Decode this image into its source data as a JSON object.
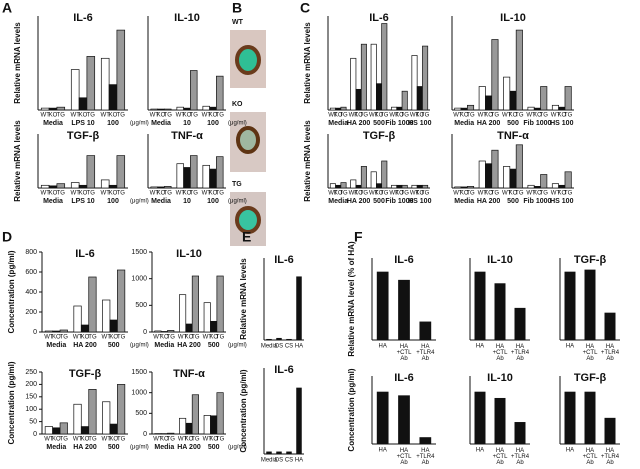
{
  "images": {
    "panel": "B",
    "labels": [
      "WT",
      "KO",
      "TG"
    ]
  },
  "chart_data": [
    {
      "type": "bar",
      "panel": "A",
      "title": "IL-6",
      "ylabel": "Relative mRNA levels",
      "categories": [
        "Media",
        "LPS 10",
        "100"
      ],
      "unit": "(μg/ml)",
      "ylim": [
        0,
        100
      ],
      "series": [
        {
          "name": "WT",
          "color": "#ffffff",
          "values": [
            2,
            43,
            55
          ]
        },
        {
          "name": "KO",
          "color": "#111111",
          "values": [
            2,
            13,
            27
          ]
        },
        {
          "name": "TG",
          "color": "#999999",
          "values": [
            3,
            57,
            85
          ]
        }
      ]
    },
    {
      "type": "bar",
      "title": "IL-10",
      "categories": [
        "Media",
        "10",
        "100"
      ],
      "unit": "(μg/ml)",
      "ylim": [
        0,
        100
      ],
      "series": [
        {
          "name": "WT",
          "color": "#ffffff",
          "values": [
            1,
            3,
            4
          ]
        },
        {
          "name": "KO",
          "color": "#111111",
          "values": [
            1,
            2,
            3
          ]
        },
        {
          "name": "TG",
          "color": "#999999",
          "values": [
            1,
            42,
            36
          ]
        }
      ]
    },
    {
      "type": "bar",
      "title": "TGF-β",
      "ylabel": "Relative mRNA levels",
      "categories": [
        "Media",
        "LPS 10",
        "100"
      ],
      "unit": "(μg/ml)",
      "ylim": [
        0,
        100
      ],
      "series": [
        {
          "name": "WT",
          "color": "#ffffff",
          "values": [
            5,
            10,
            15
          ]
        },
        {
          "name": "KO",
          "color": "#111111",
          "values": [
            4,
            5,
            5
          ]
        },
        {
          "name": "TG",
          "color": "#999999",
          "values": [
            8,
            60,
            60
          ]
        }
      ]
    },
    {
      "type": "bar",
      "title": "TNF-α",
      "categories": [
        "Media",
        "10",
        "100"
      ],
      "unit": "(μg/ml)",
      "ylim": [
        0,
        100
      ],
      "series": [
        {
          "name": "WT",
          "color": "#ffffff",
          "values": [
            2,
            45,
            42
          ]
        },
        {
          "name": "KO",
          "color": "#111111",
          "values": [
            2,
            38,
            35
          ]
        },
        {
          "name": "TG",
          "color": "#999999",
          "values": [
            3,
            60,
            58
          ]
        }
      ]
    },
    {
      "type": "bar",
      "panel": "C",
      "title": "IL-6",
      "ylabel": "Relative mRNA levels",
      "categories": [
        "Media",
        "HA 200",
        "500",
        "Fib 1000",
        "HS 100"
      ],
      "ylim": [
        0,
        100
      ],
      "series": [
        {
          "name": "WT",
          "color": "#ffffff",
          "values": [
            2,
            55,
            70,
            3,
            58
          ]
        },
        {
          "name": "KO",
          "color": "#111111",
          "values": [
            2,
            22,
            28,
            3,
            25
          ]
        },
        {
          "name": "TG",
          "color": "#999999",
          "values": [
            3,
            70,
            92,
            20,
            68
          ]
        }
      ]
    },
    {
      "type": "bar",
      "title": "IL-10",
      "categories": [
        "Media",
        "HA 200",
        "500",
        "Fib 1000",
        "HS 100"
      ],
      "ylim": [
        0,
        100
      ],
      "series": [
        {
          "name": "WT",
          "color": "#ffffff",
          "values": [
            2,
            25,
            35,
            3,
            5
          ]
        },
        {
          "name": "KO",
          "color": "#111111",
          "values": [
            2,
            15,
            20,
            2,
            3
          ]
        },
        {
          "name": "TG",
          "color": "#999999",
          "values": [
            5,
            75,
            85,
            25,
            25
          ]
        }
      ]
    },
    {
      "type": "bar",
      "title": "TGF-β",
      "ylabel": "Relative mRNA levels",
      "categories": [
        "Media",
        "HA 200",
        "500",
        "Fib 1000",
        "HS 100"
      ],
      "ylim": [
        0,
        100
      ],
      "series": [
        {
          "name": "WT",
          "color": "#ffffff",
          "values": [
            8,
            15,
            30,
            5,
            5
          ]
        },
        {
          "name": "KO",
          "color": "#111111",
          "values": [
            5,
            5,
            8,
            5,
            5
          ]
        },
        {
          "name": "TG",
          "color": "#999999",
          "values": [
            10,
            40,
            50,
            5,
            5
          ]
        }
      ]
    },
    {
      "type": "bar",
      "title": "TNF-α",
      "categories": [
        "Media",
        "HA 200",
        "500",
        "Fib 1000",
        "HS 100"
      ],
      "ylim": [
        0,
        100
      ],
      "series": [
        {
          "name": "WT",
          "color": "#ffffff",
          "values": [
            2,
            50,
            40,
            5,
            8
          ]
        },
        {
          "name": "KO",
          "color": "#111111",
          "values": [
            2,
            45,
            35,
            3,
            5
          ]
        },
        {
          "name": "TG",
          "color": "#999999",
          "values": [
            3,
            70,
            80,
            25,
            30
          ]
        }
      ]
    },
    {
      "type": "bar",
      "panel": "D",
      "title": "IL-6",
      "ylabel": "Concentration (pg/ml)",
      "categories": [
        "Media",
        "HA 200",
        "500"
      ],
      "unit": "(μg/ml)",
      "ylim": [
        0,
        800
      ],
      "yticks": [
        0,
        200,
        400,
        600,
        800
      ],
      "series": [
        {
          "name": "WT",
          "color": "#ffffff",
          "values": [
            10,
            260,
            320
          ]
        },
        {
          "name": "KO",
          "color": "#111111",
          "values": [
            10,
            70,
            120
          ]
        },
        {
          "name": "TG",
          "color": "#999999",
          "values": [
            20,
            550,
            620
          ]
        }
      ]
    },
    {
      "type": "bar",
      "title": "IL-10",
      "categories": [
        "Media",
        "HA 200",
        "500"
      ],
      "unit": "(μg/ml)",
      "ylim": [
        0,
        1500
      ],
      "yticks": [
        0,
        500,
        1000,
        1500
      ],
      "series": [
        {
          "name": "WT",
          "color": "#ffffff",
          "values": [
            20,
            700,
            550
          ]
        },
        {
          "name": "KO",
          "color": "#111111",
          "values": [
            10,
            150,
            200
          ]
        },
        {
          "name": "TG",
          "color": "#999999",
          "values": [
            30,
            1050,
            1050
          ]
        }
      ]
    },
    {
      "type": "bar",
      "title": "TGF-β",
      "ylabel": "Concentration (pg/ml)",
      "categories": [
        "Media",
        "HA 200",
        "500"
      ],
      "unit": "(μg/ml)",
      "ylim": [
        0,
        250
      ],
      "yticks": [
        0,
        50,
        100,
        150,
        200,
        250
      ],
      "series": [
        {
          "name": "WT",
          "color": "#ffffff",
          "values": [
            30,
            120,
            130
          ]
        },
        {
          "name": "KO",
          "color": "#111111",
          "values": [
            25,
            30,
            40
          ]
        },
        {
          "name": "TG",
          "color": "#999999",
          "values": [
            45,
            180,
            200
          ]
        }
      ]
    },
    {
      "type": "bar",
      "title": "TNF-α",
      "categories": [
        "Media",
        "HA 200",
        "500"
      ],
      "unit": "(μg/ml)",
      "ylim": [
        0,
        1500
      ],
      "yticks": [
        0,
        500,
        1000,
        1500
      ],
      "series": [
        {
          "name": "WT",
          "color": "#ffffff",
          "values": [
            10,
            380,
            450
          ]
        },
        {
          "name": "KO",
          "color": "#111111",
          "values": [
            10,
            260,
            440
          ]
        },
        {
          "name": "TG",
          "color": "#999999",
          "values": [
            20,
            950,
            1000
          ]
        }
      ]
    },
    {
      "type": "bar",
      "panel": "E",
      "title": "IL-6",
      "ylabel": "Relative mRNA levels",
      "categories": [
        "Media",
        "DS",
        "CS",
        "HA"
      ],
      "values": [
        1,
        2,
        1,
        62
      ],
      "color": "#111111",
      "ylim": [
        0,
        80
      ]
    },
    {
      "type": "bar",
      "title": "IL-6",
      "ylabel": "Concentration (pg/ml)",
      "categories": [
        "Media",
        "DS",
        "CS",
        "HA"
      ],
      "values": [
        1,
        1,
        1,
        27
      ],
      "color": "#111111",
      "ylim": [
        0,
        35
      ]
    },
    {
      "type": "bar",
      "panel": "F",
      "title": "IL-6",
      "ylabel": "Relative mRNA level (% of HA)",
      "categories": [
        "HA",
        "HA +CTL Ab",
        "HA +TLR4 Ab"
      ],
      "values": [
        100,
        88,
        27
      ],
      "color": "#111111",
      "ylim": [
        0,
        120
      ]
    },
    {
      "type": "bar",
      "title": "IL-10",
      "categories": [
        "HA",
        "HA +CTL Ab",
        "HA +TLR4 Ab"
      ],
      "values": [
        100,
        83,
        47
      ],
      "color": "#111111",
      "ylim": [
        0,
        120
      ]
    },
    {
      "type": "bar",
      "title": "TGF-β",
      "categories": [
        "HA",
        "HA +CTL Ab",
        "HA +TLR4 Ab"
      ],
      "values": [
        100,
        103,
        40
      ],
      "color": "#111111",
      "ylim": [
        0,
        120
      ]
    },
    {
      "type": "bar",
      "title": "IL-6",
      "ylabel": "Concentration (pg/ml)",
      "categories": [
        "HA",
        "HA +CTL Ab",
        "HA +TLR4 Ab"
      ],
      "values": [
        100,
        93,
        13
      ],
      "color": "#111111",
      "ylim": [
        0,
        130
      ]
    },
    {
      "type": "bar",
      "title": "IL-10",
      "categories": [
        "HA",
        "HA +CTL Ab",
        "HA +TLR4 Ab"
      ],
      "values": [
        100,
        88,
        42
      ],
      "color": "#111111",
      "ylim": [
        0,
        130
      ]
    },
    {
      "type": "bar",
      "title": "TGF-β",
      "categories": [
        "HA",
        "HA +CTL Ab",
        "HA +TLR4 Ab"
      ],
      "values": [
        100,
        100,
        50
      ],
      "color": "#111111",
      "ylim": [
        0,
        130
      ]
    }
  ]
}
